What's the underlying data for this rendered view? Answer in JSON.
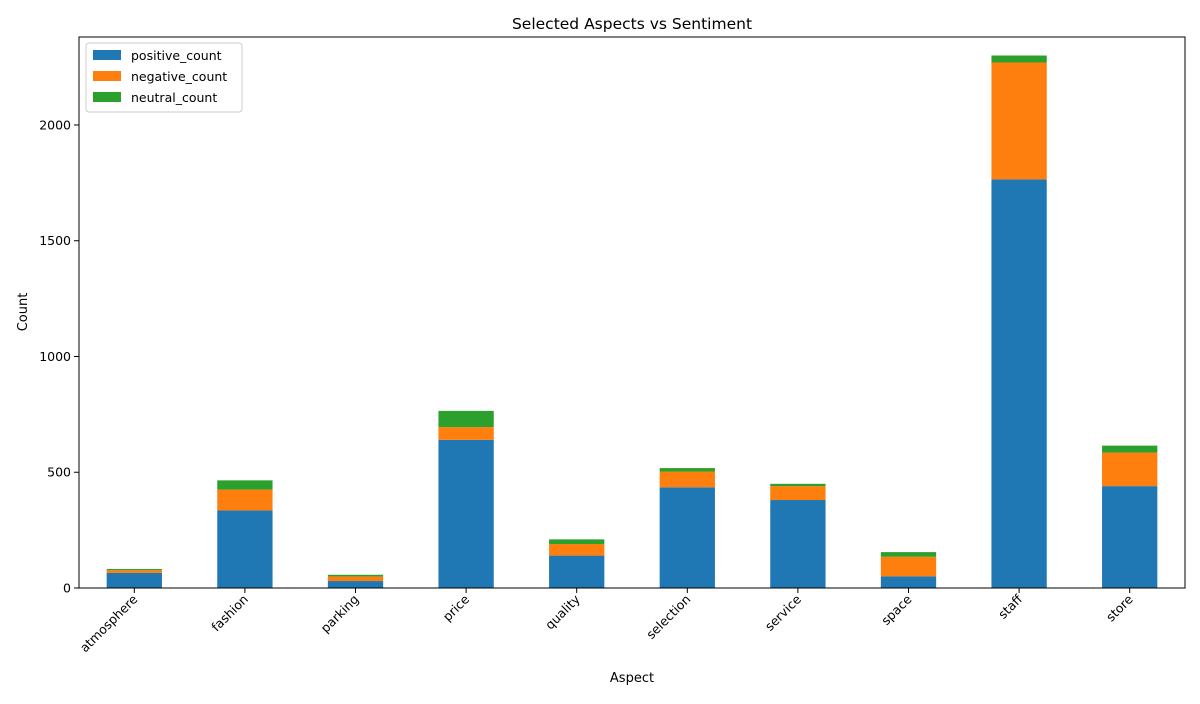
{
  "chart_data": {
    "type": "bar",
    "stacked": true,
    "title": "Selected Aspects vs Sentiment",
    "xlabel": "Aspect",
    "ylabel": "Count",
    "ylim": [
      0,
      2380
    ],
    "yticks": [
      0,
      500,
      1000,
      1500,
      2000
    ],
    "x_tick_rotation_deg": 45,
    "grid": false,
    "legend_position": "top-left",
    "categories": [
      "atmosphere",
      "fashion",
      "parking",
      "price",
      "quality",
      "selection",
      "service",
      "space",
      "staff",
      "store"
    ],
    "series": [
      {
        "name": "positive_count",
        "color": "#1f77b4",
        "values": [
          65,
          335,
          30,
          640,
          140,
          435,
          380,
          50,
          1765,
          440
        ]
      },
      {
        "name": "negative_count",
        "color": "#ff7f0e",
        "values": [
          12,
          90,
          20,
          55,
          50,
          68,
          60,
          85,
          505,
          145
        ]
      },
      {
        "name": "neutral_count",
        "color": "#2ca02c",
        "values": [
          5,
          40,
          7,
          70,
          20,
          15,
          10,
          20,
          30,
          30
        ]
      }
    ]
  }
}
